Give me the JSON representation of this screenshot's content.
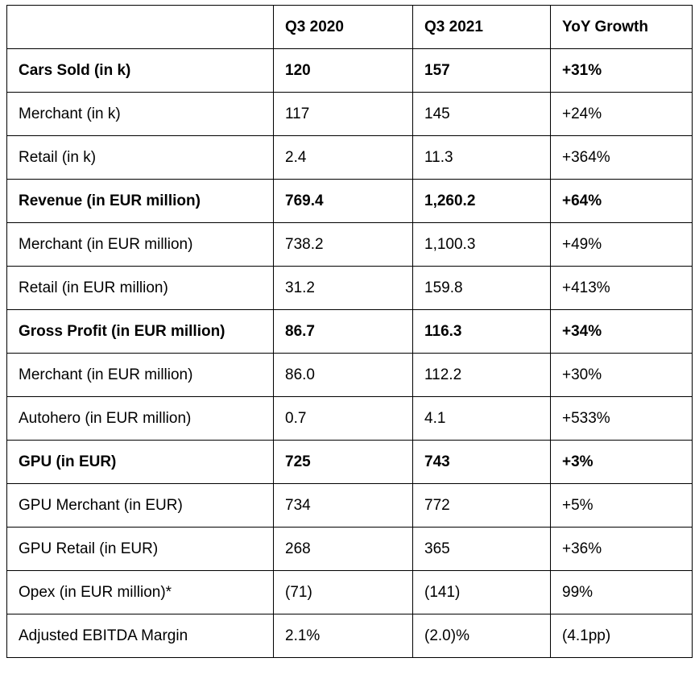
{
  "table": {
    "header": [
      "",
      "Q3 2020",
      "Q3 2021",
      "YoY Growth"
    ],
    "rows": [
      {
        "bold": true,
        "cells": [
          "Cars Sold (in k)",
          "120",
          "157",
          "+31%"
        ]
      },
      {
        "bold": false,
        "cells": [
          "Merchant (in k)",
          "117",
          "145",
          "+24%"
        ]
      },
      {
        "bold": false,
        "cells": [
          "Retail (in k)",
          "2.4",
          "11.3",
          "+364%"
        ]
      },
      {
        "bold": true,
        "cells": [
          "Revenue (in EUR million)",
          "769.4",
          "1,260.2",
          "+64%"
        ]
      },
      {
        "bold": false,
        "cells": [
          "Merchant (in EUR million)",
          "738.2",
          "1,100.3",
          "+49%"
        ]
      },
      {
        "bold": false,
        "cells": [
          "Retail (in EUR million)",
          "31.2",
          "159.8",
          "+413%"
        ]
      },
      {
        "bold": true,
        "cells": [
          "Gross Profit (in EUR million)",
          "86.7",
          "116.3",
          "+34%"
        ]
      },
      {
        "bold": false,
        "cells": [
          "Merchant (in EUR million)",
          "86.0",
          "112.2",
          "+30%"
        ]
      },
      {
        "bold": false,
        "cells": [
          "Autohero (in EUR million)",
          "0.7",
          "4.1",
          "+533%"
        ]
      },
      {
        "bold": true,
        "cells": [
          "GPU (in EUR)",
          "725",
          "743",
          "+3%"
        ]
      },
      {
        "bold": false,
        "cells": [
          "GPU Merchant (in EUR)",
          "734",
          "772",
          "+5%"
        ]
      },
      {
        "bold": false,
        "cells": [
          "GPU Retail (in EUR)",
          "268",
          "365",
          "+36%"
        ]
      },
      {
        "bold": false,
        "cells": [
          "Opex (in EUR million)*",
          "(71)",
          "(141)",
          "99%"
        ]
      },
      {
        "bold": false,
        "cells": [
          "Adjusted EBITDA Margin",
          "2.1%",
          "(2.0)%",
          "(4.1pp)"
        ]
      }
    ]
  }
}
